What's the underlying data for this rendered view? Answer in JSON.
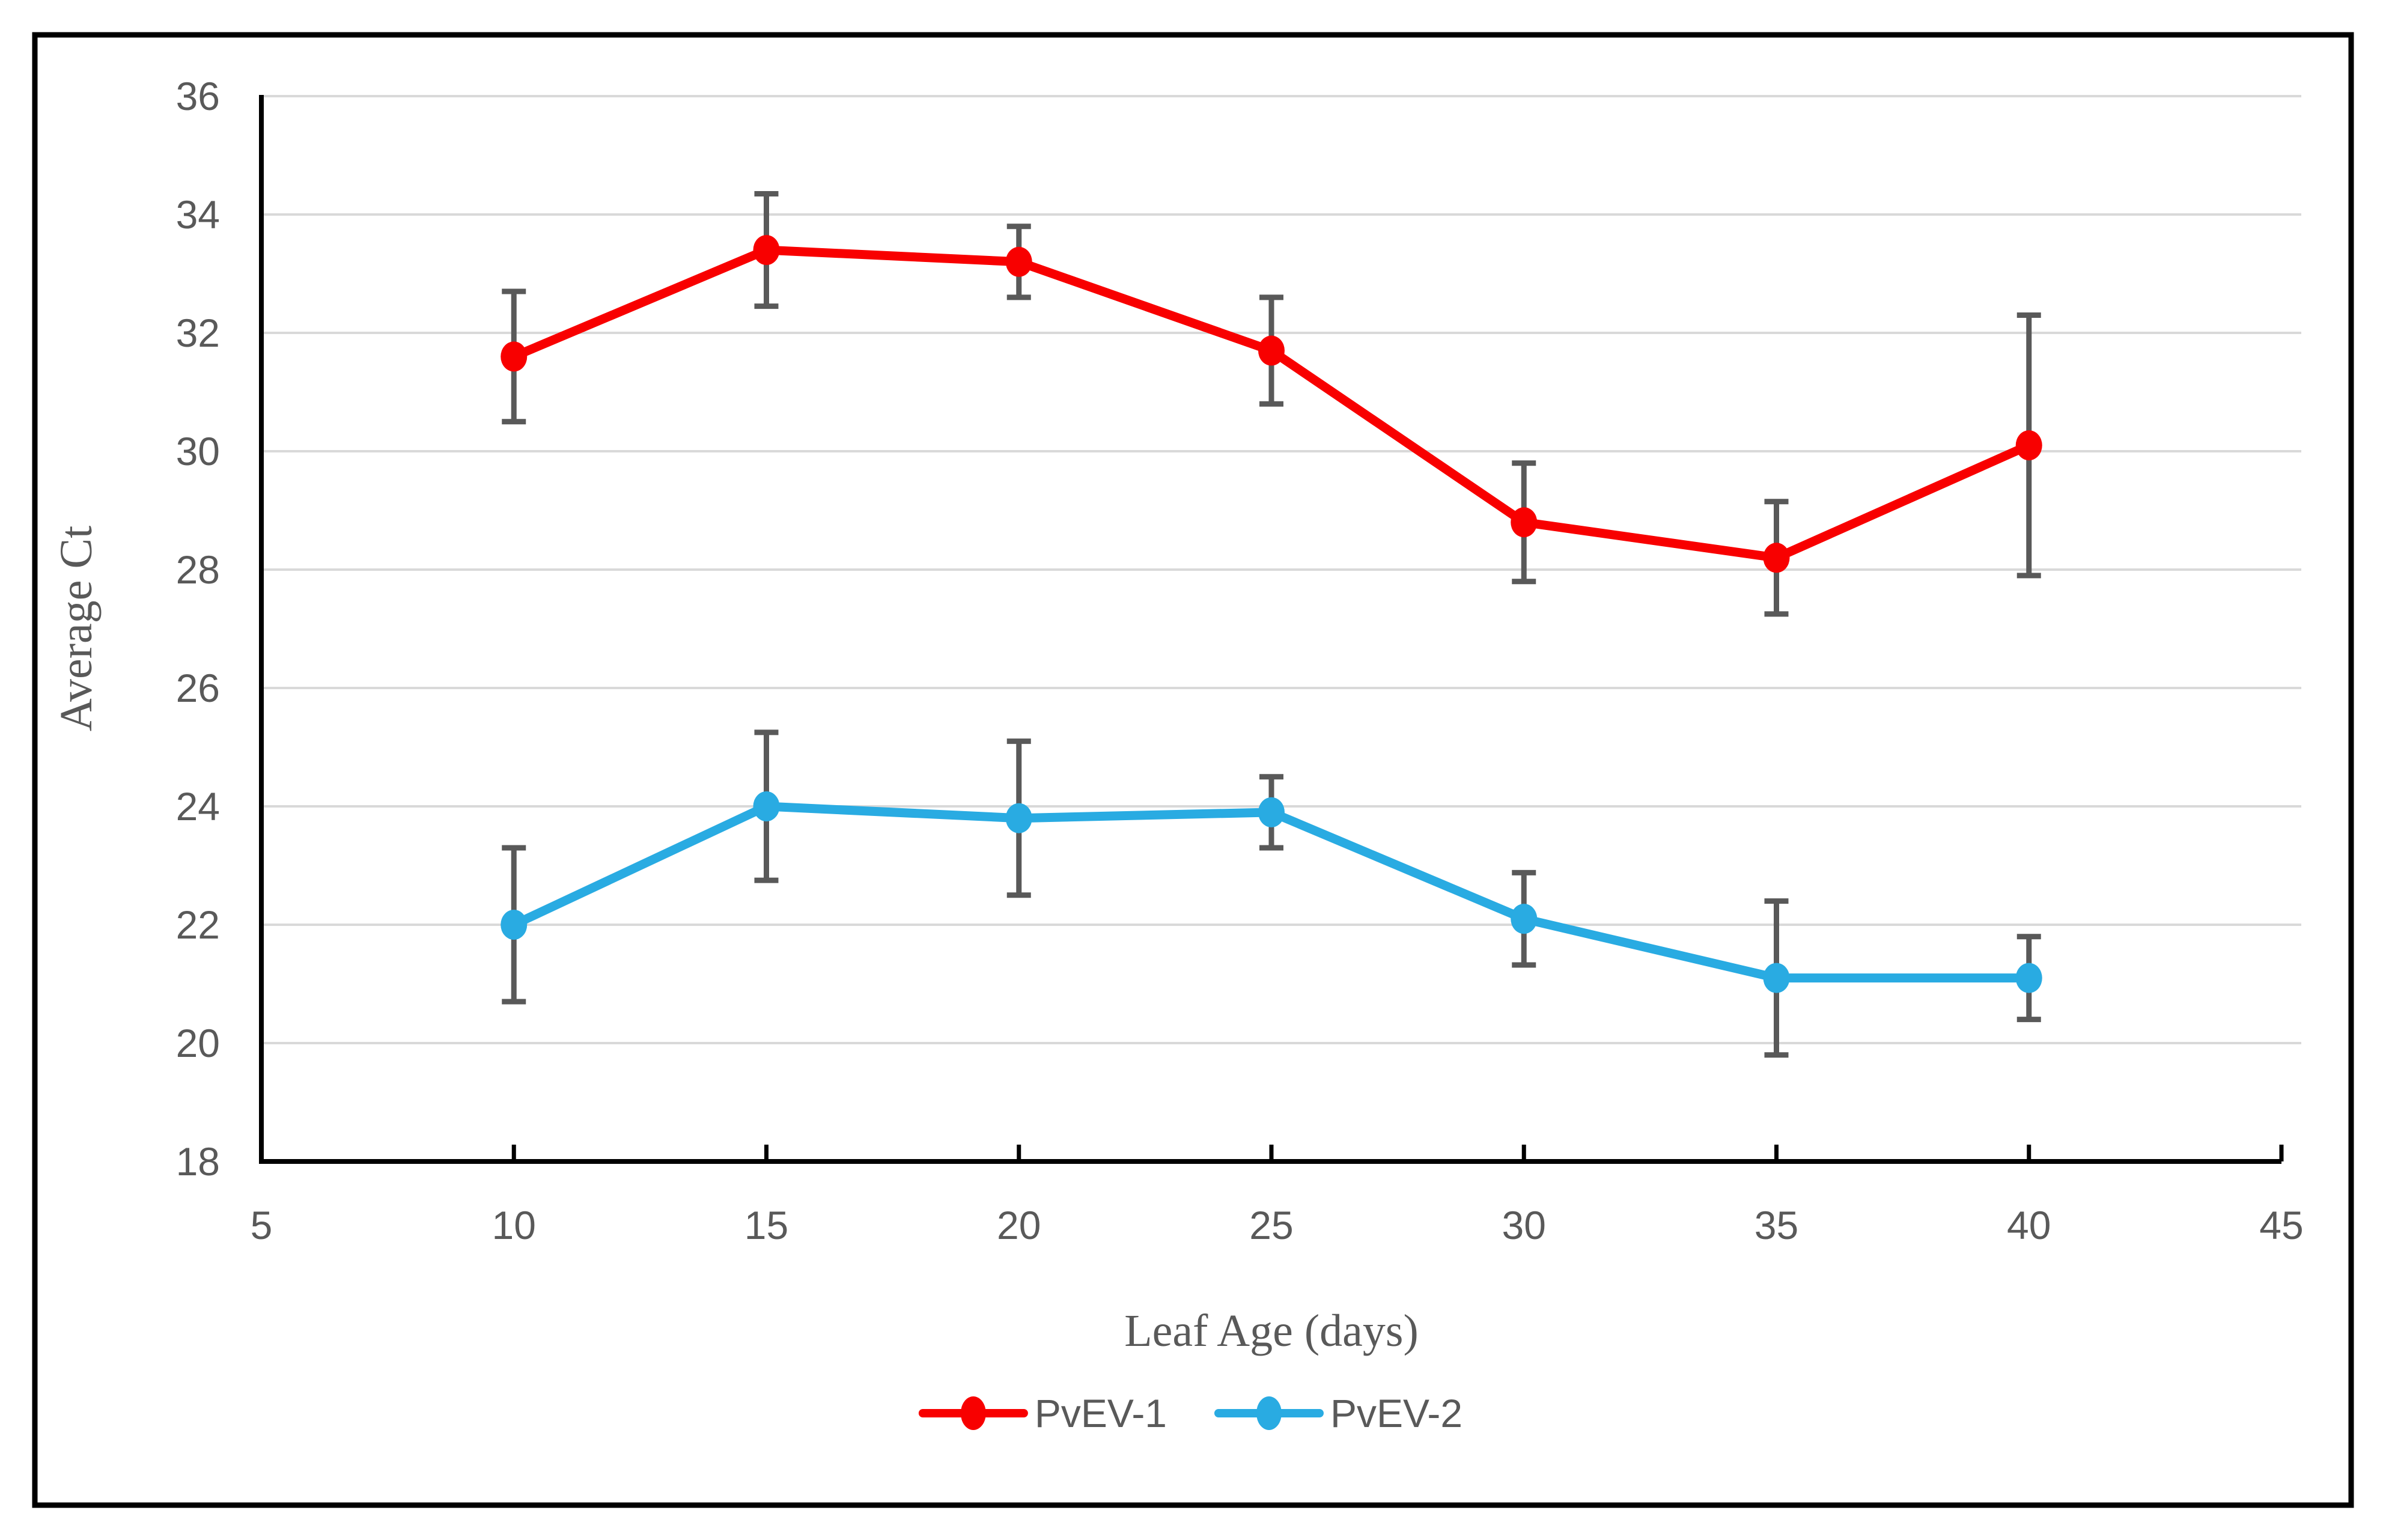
{
  "figure": {
    "background": "#FFFFFF",
    "border_color": "#000000"
  },
  "chart_data": {
    "type": "line",
    "title": "",
    "xlabel": "Leaf Age (days)",
    "ylabel": "Average Ct",
    "x": [
      10,
      15,
      20,
      25,
      30,
      35,
      40
    ],
    "xlim": [
      5,
      45
    ],
    "ylim": [
      18,
      36
    ],
    "x_ticks": [
      5,
      10,
      15,
      20,
      25,
      30,
      35,
      40,
      45
    ],
    "y_ticks": [
      18,
      20,
      22,
      24,
      26,
      28,
      30,
      32,
      34,
      36
    ],
    "grid": "horizontal",
    "legend_position": "bottom-center",
    "series": [
      {
        "name": "PvEV-1",
        "color": "#F80000",
        "values": [
          31.6,
          33.4,
          33.2,
          31.7,
          28.8,
          28.2,
          30.1
        ],
        "error": [
          1.1,
          0.95,
          0.6,
          0.9,
          1.0,
          0.95,
          2.2
        ]
      },
      {
        "name": "PvEV-2",
        "color": "#29ABE2",
        "values": [
          22.0,
          24.0,
          23.8,
          23.9,
          22.1,
          21.1,
          21.1
        ],
        "error": [
          1.3,
          1.25,
          1.3,
          0.6,
          0.78,
          1.3,
          0.7
        ]
      }
    ],
    "error_bar_color": "#595959",
    "gridline_color": "#D9D9D9",
    "axis_color": "#000000",
    "label_color": "#595959"
  }
}
